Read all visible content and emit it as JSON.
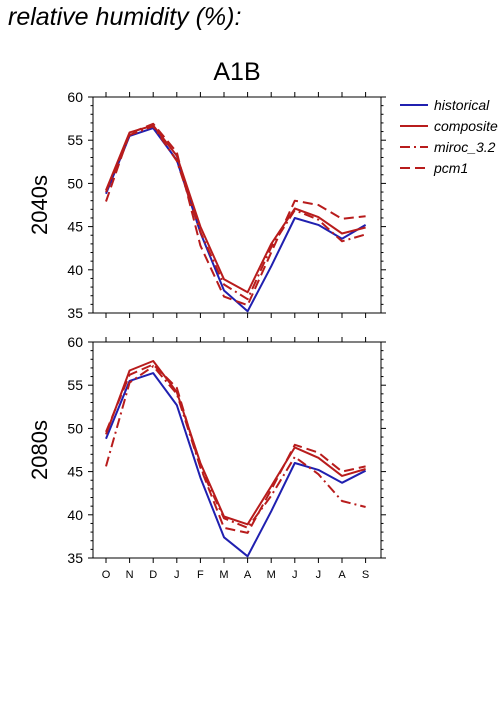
{
  "page": {
    "title": "relative humidity (%):"
  },
  "chart_data": {
    "type": "line",
    "title": "A1B",
    "categories": [
      "O",
      "N",
      "D",
      "J",
      "F",
      "M",
      "A",
      "M",
      "J",
      "J",
      "A",
      "S"
    ],
    "xlabel": "",
    "ylim": [
      35,
      60
    ],
    "yticks": [
      35,
      40,
      45,
      50,
      55,
      60
    ],
    "grid": false,
    "legend_position": "top-right outside",
    "legend": [
      {
        "name": "historical",
        "color": "#2020b0",
        "dash": "solid"
      },
      {
        "name": "composite",
        "color": "#b81c1c",
        "dash": "solid"
      },
      {
        "name": "miroc_3.2",
        "color": "#b81c1c",
        "dash": "dashdot"
      },
      {
        "name": "pcm1",
        "color": "#b81c1c",
        "dash": "dashed"
      }
    ],
    "panels": [
      {
        "ylabel": "2040s",
        "series": [
          {
            "name": "historical",
            "values": [
              48.8,
              55.5,
              56.4,
              52.7,
              44.3,
              37.6,
              35.2,
              40.4,
              46.0,
              45.2,
              43.6,
              45.2
            ]
          },
          {
            "name": "composite",
            "values": [
              49.2,
              55.9,
              56.7,
              53.2,
              45.0,
              38.9,
              37.4,
              43.0,
              47.1,
              46.1,
              44.2,
              44.9
            ]
          },
          {
            "name": "miroc_3.2",
            "values": [
              49.0,
              55.6,
              56.6,
              52.6,
              44.4,
              38.3,
              36.6,
              42.6,
              46.9,
              45.8,
              43.3,
              44.1
            ]
          },
          {
            "name": "pcm1",
            "values": [
              47.9,
              55.8,
              56.9,
              53.6,
              42.8,
              36.9,
              35.9,
              42.0,
              48.0,
              47.5,
              45.9,
              46.2
            ]
          }
        ]
      },
      {
        "ylabel": "2080s",
        "series": [
          {
            "name": "historical",
            "values": [
              48.8,
              55.5,
              56.4,
              52.7,
              44.3,
              37.4,
              35.2,
              40.4,
              46.0,
              45.2,
              43.7,
              45.1
            ]
          },
          {
            "name": "composite",
            "values": [
              49.3,
              56.7,
              57.8,
              54.2,
              46.0,
              39.8,
              38.9,
              43.3,
              47.8,
              46.6,
              44.5,
              45.3
            ]
          },
          {
            "name": "miroc_3.2",
            "values": [
              45.6,
              55.3,
              57.2,
              54.0,
              45.5,
              39.6,
              38.5,
              42.2,
              46.7,
              44.7,
              41.6,
              40.9
            ]
          },
          {
            "name": "pcm1",
            "values": [
              49.6,
              56.2,
              57.4,
              54.7,
              45.5,
              38.5,
              37.9,
              42.9,
              48.1,
              47.2,
              45.0,
              45.6
            ]
          }
        ]
      }
    ]
  }
}
